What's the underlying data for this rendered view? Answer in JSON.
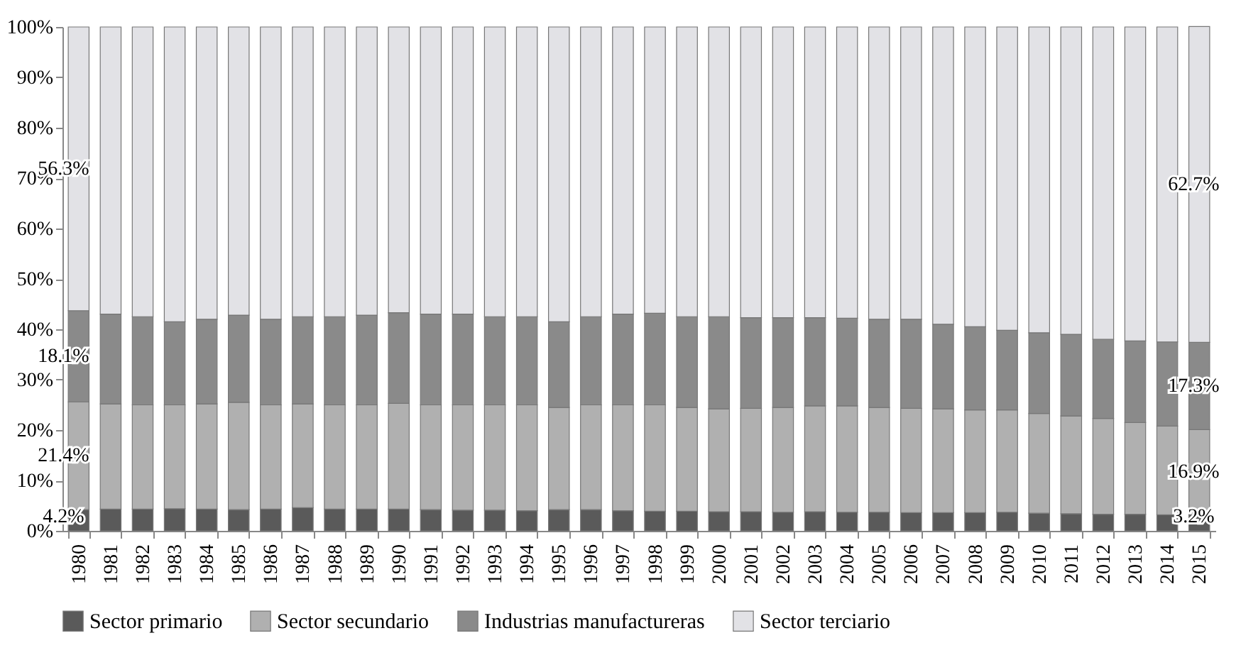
{
  "chart_data": {
    "type": "bar",
    "stacked": true,
    "categories": [
      "1980",
      "1981",
      "1982",
      "1983",
      "1984",
      "1985",
      "1986",
      "1987",
      "1988",
      "1989",
      "1990",
      "1991",
      "1992",
      "1993",
      "1994",
      "1995",
      "1996",
      "1997",
      "1998",
      "1999",
      "2000",
      "2001",
      "2002",
      "2003",
      "2004",
      "2005",
      "2006",
      "2007",
      "2008",
      "2009",
      "2010",
      "2011",
      "2012",
      "2013",
      "2014",
      "2015"
    ],
    "series": [
      {
        "name": "Sector primario",
        "color": "#5a5a5a",
        "values": [
          4.2,
          4.3,
          4.3,
          4.4,
          4.3,
          4.2,
          4.3,
          4.6,
          4.3,
          4.3,
          4.3,
          4.2,
          4.1,
          4.1,
          4.0,
          4.2,
          4.2,
          4.0,
          3.9,
          3.9,
          3.8,
          3.8,
          3.7,
          3.8,
          3.7,
          3.7,
          3.6,
          3.6,
          3.6,
          3.7,
          3.5,
          3.4,
          3.3,
          3.3,
          3.2,
          3.2
        ],
        "value_labels": [
          "4.2%",
          null,
          null,
          null,
          null,
          null,
          null,
          null,
          null,
          null,
          null,
          null,
          null,
          null,
          null,
          null,
          null,
          null,
          null,
          null,
          null,
          null,
          null,
          null,
          null,
          null,
          null,
          null,
          null,
          null,
          null,
          null,
          null,
          null,
          null,
          "3.2%"
        ]
      },
      {
        "name": "Sector secundario",
        "color": "#b0b0b0",
        "values": [
          21.4,
          20.9,
          20.7,
          20.6,
          20.9,
          21.3,
          20.7,
          20.6,
          20.7,
          20.7,
          21.0,
          20.8,
          20.9,
          20.9,
          21.0,
          20.3,
          20.8,
          21.0,
          21.1,
          20.6,
          20.4,
          20.5,
          20.8,
          21.0,
          21.1,
          20.8,
          20.7,
          20.6,
          20.4,
          20.3,
          19.8,
          19.4,
          19.0,
          18.2,
          17.6,
          16.9
        ],
        "value_labels": [
          "21.4%",
          null,
          null,
          null,
          null,
          null,
          null,
          null,
          null,
          null,
          null,
          null,
          null,
          null,
          null,
          null,
          null,
          null,
          null,
          null,
          null,
          null,
          null,
          null,
          null,
          null,
          null,
          null,
          null,
          null,
          null,
          null,
          null,
          null,
          null,
          "16.9%"
        ]
      },
      {
        "name": "Industrias manufactureras",
        "color": "#8a8a8a",
        "values": [
          18.1,
          17.8,
          17.5,
          16.5,
          16.8,
          17.3,
          17.0,
          17.3,
          17.5,
          17.8,
          18.0,
          18.0,
          18.0,
          17.5,
          17.5,
          17.0,
          17.5,
          18.0,
          18.2,
          18.0,
          18.3,
          18.0,
          17.8,
          17.5,
          17.4,
          17.5,
          17.7,
          16.8,
          16.5,
          15.8,
          16.0,
          16.2,
          15.7,
          16.2,
          16.7,
          17.3
        ],
        "value_labels": [
          "18.1%",
          null,
          null,
          null,
          null,
          null,
          null,
          null,
          null,
          null,
          null,
          null,
          null,
          null,
          null,
          null,
          null,
          null,
          null,
          null,
          null,
          null,
          null,
          null,
          null,
          null,
          null,
          null,
          null,
          null,
          null,
          null,
          null,
          null,
          null,
          "17.3%"
        ]
      },
      {
        "name": "Sector terciario",
        "color": "#e2e2e6",
        "values": [
          56.3,
          57.0,
          57.5,
          58.5,
          58.0,
          57.2,
          58.0,
          57.5,
          57.5,
          57.2,
          56.7,
          57.0,
          57.0,
          57.5,
          57.5,
          58.5,
          57.5,
          57.0,
          56.8,
          57.5,
          57.5,
          57.7,
          57.7,
          57.7,
          57.8,
          58.0,
          58.0,
          59.0,
          59.5,
          60.2,
          60.7,
          61.0,
          62.0,
          62.3,
          62.5,
          62.7
        ],
        "value_labels": [
          "56.3%",
          null,
          null,
          null,
          null,
          null,
          null,
          null,
          null,
          null,
          null,
          null,
          null,
          null,
          null,
          null,
          null,
          null,
          null,
          null,
          null,
          null,
          null,
          null,
          null,
          null,
          null,
          null,
          null,
          null,
          null,
          null,
          null,
          null,
          null,
          "62.7%"
        ]
      }
    ],
    "ylim": [
      0,
      100
    ],
    "yticks": [
      {
        "value": 0,
        "label": "0%"
      },
      {
        "value": 10,
        "label": "10%"
      },
      {
        "value": 20,
        "label": "20%"
      },
      {
        "value": 30,
        "label": "30%"
      },
      {
        "value": 40,
        "label": "40%"
      },
      {
        "value": 50,
        "label": "50%"
      },
      {
        "value": 60,
        "label": "60%"
      },
      {
        "value": 70,
        "label": "70%"
      },
      {
        "value": 80,
        "label": "80%"
      },
      {
        "value": 90,
        "label": "90%"
      },
      {
        "value": 100,
        "label": "100%"
      }
    ],
    "legend": "bottom"
  }
}
